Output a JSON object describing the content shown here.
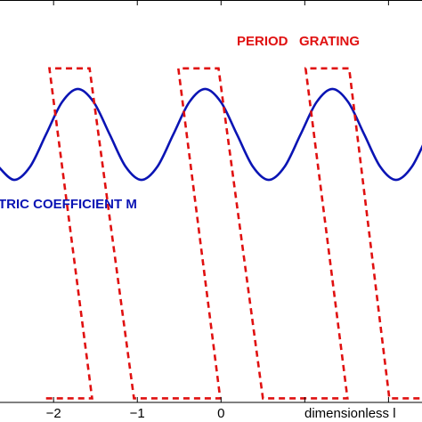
{
  "chart_data": {
    "type": "line",
    "xlabel": "dimensionless l",
    "annotations": [
      "PERIOD   GRATING",
      "TRIC COEFFICIENT M"
    ],
    "xlim": [
      -2.64,
      2.4
    ],
    "ylim": [
      0,
      1
    ],
    "xticks": [
      {
        "value": -2,
        "label": "−2"
      },
      {
        "value": -1,
        "label": "−1"
      },
      {
        "value": 0,
        "label": "0"
      },
      {
        "value": 1,
        "label": null
      },
      {
        "value": 2,
        "label": null
      }
    ],
    "series": [
      {
        "color": "#0a14b4",
        "style": "solid",
        "x": [
          -2.66,
          -2.47,
          -2.28,
          -2.09,
          -1.9,
          -1.71,
          -1.52,
          -1.33,
          -1.14,
          -0.95,
          -0.76,
          -0.57,
          -0.38,
          -0.19,
          0.0,
          0.19,
          0.38,
          0.57,
          0.76,
          0.95,
          1.14,
          1.33,
          1.52,
          1.71,
          1.9,
          2.09,
          2.28,
          2.47
        ],
        "values": [
          0.586,
          0.553,
          0.586,
          0.666,
          0.746,
          0.779,
          0.746,
          0.666,
          0.586,
          0.553,
          0.586,
          0.666,
          0.746,
          0.779,
          0.746,
          0.666,
          0.586,
          0.553,
          0.586,
          0.666,
          0.746,
          0.779,
          0.746,
          0.666,
          0.586,
          0.553,
          0.586,
          0.666
        ]
      },
      {
        "color": "#e01010",
        "style": "dashed",
        "x": [
          -2.09,
          -1.54,
          -2.05,
          -1.57,
          -1.04,
          -0.01,
          -0.51,
          -0.03,
          0.5,
          1.51,
          1.01,
          1.53,
          2.01,
          2.4
        ],
        "values": [
          0.01,
          0.01,
          0.83,
          0.83,
          0.01,
          0.01,
          0.83,
          0.83,
          0.01,
          0.01,
          0.83,
          0.83,
          0.01,
          0.01
        ]
      }
    ]
  }
}
